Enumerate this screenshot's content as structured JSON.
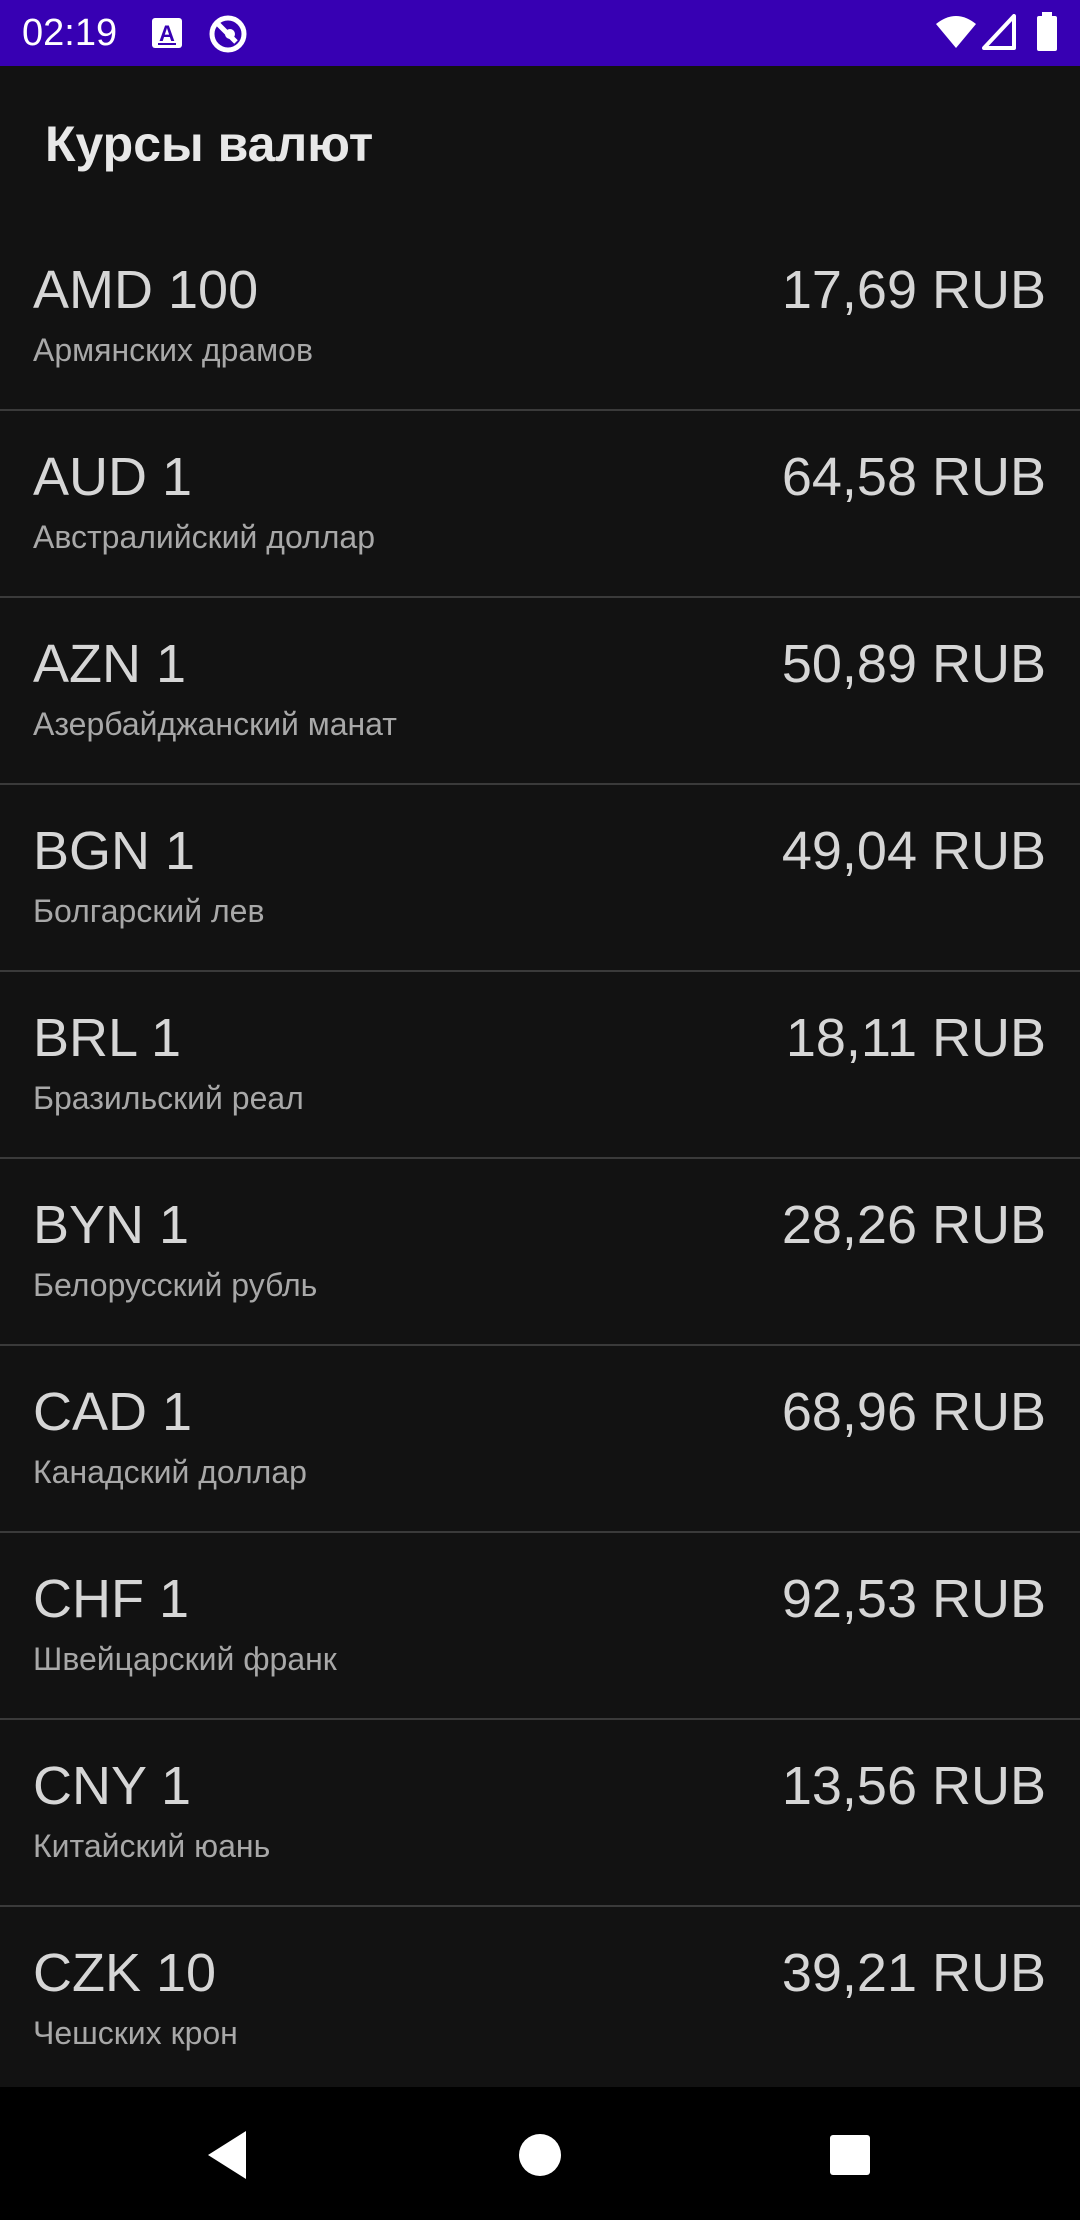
{
  "status_bar": {
    "time": "02:19",
    "icons": [
      "keyboard-a-icon",
      "circle-logo-icon",
      "wifi-icon",
      "signal-icon",
      "battery-icon"
    ],
    "background": "#3700B3"
  },
  "app_bar": {
    "title": "Курсы валют"
  },
  "rates": [
    {
      "code": "AMD 100",
      "name": "Армянских драмов",
      "value": "17,69 RUB"
    },
    {
      "code": "AUD 1",
      "name": "Австралийский доллар",
      "value": "64,58 RUB"
    },
    {
      "code": "AZN 1",
      "name": "Азербайджанский манат",
      "value": "50,89 RUB"
    },
    {
      "code": "BGN 1",
      "name": "Болгарский лев",
      "value": "49,04 RUB"
    },
    {
      "code": "BRL 1",
      "name": "Бразильский реал",
      "value": "18,11 RUB"
    },
    {
      "code": "BYN 1",
      "name": "Белорусский рубль",
      "value": "28,26 RUB"
    },
    {
      "code": "CAD 1",
      "name": "Канадский доллар",
      "value": "68,96 RUB"
    },
    {
      "code": "CHF 1",
      "name": "Швейцарский франк",
      "value": "92,53 RUB"
    },
    {
      "code": "CNY 1",
      "name": "Китайский юань",
      "value": "13,56 RUB"
    },
    {
      "code": "CZK 10",
      "name": "Чешских крон",
      "value": "39,21 RUB"
    }
  ],
  "nav_bar": {
    "buttons": [
      "back-icon",
      "home-icon",
      "recents-icon"
    ]
  }
}
